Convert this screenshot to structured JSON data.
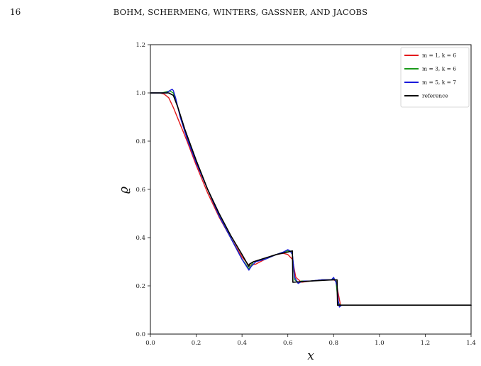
{
  "page": {
    "page_number": "16",
    "running_head": "BOHM, SCHERMENG, WINTERS, GASSNER, AND JACOBS"
  },
  "chart_data": {
    "type": "line",
    "title": "",
    "xlabel": "x",
    "ylabel": "ϱ",
    "xlim": [
      0.0,
      1.4
    ],
    "ylim": [
      0.0,
      1.2
    ],
    "x_ticks": [
      "0.0",
      "0.2",
      "0.4",
      "0.6",
      "0.8",
      "1.0",
      "1.2",
      "1.4"
    ],
    "y_ticks": [
      "0.0",
      "0.2",
      "0.4",
      "0.6",
      "0.8",
      "1.0",
      "1.2"
    ],
    "grid": false,
    "legend_position": "top-right",
    "series": [
      {
        "name": "m = 1, k = 6",
        "color": "#e41a1c",
        "x": [
          0.0,
          0.04,
          0.06,
          0.08,
          0.1,
          0.13,
          0.16,
          0.2,
          0.25,
          0.3,
          0.35,
          0.4,
          0.43,
          0.46,
          0.5,
          0.55,
          0.58,
          0.6,
          0.62,
          0.635,
          0.66,
          0.7,
          0.75,
          0.8,
          0.81,
          0.82,
          0.83,
          0.85,
          1.0,
          1.2,
          1.4
        ],
        "y": [
          1.0,
          1.0,
          0.995,
          0.98,
          0.94,
          0.87,
          0.8,
          0.7,
          0.585,
          0.485,
          0.4,
          0.32,
          0.285,
          0.29,
          0.31,
          0.33,
          0.335,
          0.33,
          0.31,
          0.235,
          0.215,
          0.22,
          0.225,
          0.225,
          0.22,
          0.17,
          0.12,
          0.12,
          0.12,
          0.12,
          0.12
        ]
      },
      {
        "name": "m = 3, k = 6",
        "color": "#1a9a1a",
        "x": [
          0.0,
          0.05,
          0.07,
          0.085,
          0.1,
          0.12,
          0.15,
          0.2,
          0.25,
          0.3,
          0.35,
          0.4,
          0.42,
          0.43,
          0.45,
          0.5,
          0.55,
          0.58,
          0.6,
          0.61,
          0.62,
          0.63,
          0.645,
          0.66,
          0.7,
          0.75,
          0.79,
          0.8,
          0.805,
          0.81,
          0.82,
          0.83,
          0.85,
          1.0,
          1.2,
          1.4
        ],
        "y": [
          1.0,
          1.0,
          1.005,
          1.008,
          1.0,
          0.94,
          0.84,
          0.72,
          0.6,
          0.49,
          0.4,
          0.31,
          0.285,
          0.27,
          0.3,
          0.31,
          0.33,
          0.34,
          0.345,
          0.345,
          0.33,
          0.225,
          0.215,
          0.22,
          0.22,
          0.225,
          0.225,
          0.23,
          0.225,
          0.22,
          0.13,
          0.12,
          0.12,
          0.12,
          0.12,
          0.12
        ]
      },
      {
        "name": "m = 5, k = 7",
        "color": "#1a1adb",
        "x": [
          0.0,
          0.05,
          0.07,
          0.085,
          0.095,
          0.1,
          0.11,
          0.13,
          0.16,
          0.2,
          0.25,
          0.3,
          0.35,
          0.4,
          0.42,
          0.43,
          0.44,
          0.46,
          0.5,
          0.55,
          0.58,
          0.6,
          0.61,
          0.62,
          0.63,
          0.645,
          0.655,
          0.67,
          0.7,
          0.75,
          0.79,
          0.8,
          0.805,
          0.81,
          0.815,
          0.82,
          0.825,
          0.835,
          0.85,
          1.0,
          1.2,
          1.4
        ],
        "y": [
          1.0,
          1.0,
          1.0,
          1.01,
          1.015,
          1.01,
          0.98,
          0.9,
          0.81,
          0.71,
          0.6,
          0.49,
          0.4,
          0.31,
          0.28,
          0.265,
          0.28,
          0.3,
          0.31,
          0.33,
          0.34,
          0.35,
          0.345,
          0.33,
          0.235,
          0.21,
          0.215,
          0.22,
          0.22,
          0.225,
          0.225,
          0.235,
          0.225,
          0.215,
          0.2,
          0.14,
          0.112,
          0.12,
          0.12,
          0.12,
          0.12,
          0.12
        ]
      },
      {
        "name": "reference",
        "color": "#000000",
        "x": [
          0.0,
          0.08,
          0.1,
          0.12,
          0.15,
          0.2,
          0.25,
          0.3,
          0.35,
          0.4,
          0.43,
          0.432,
          0.45,
          0.5,
          0.55,
          0.6,
          0.62,
          0.622,
          0.7,
          0.8,
          0.815,
          0.817,
          0.85,
          1.0,
          1.2,
          1.4
        ],
        "y": [
          1.0,
          1.0,
          0.99,
          0.94,
          0.85,
          0.72,
          0.6,
          0.5,
          0.41,
          0.33,
          0.28,
          0.29,
          0.3,
          0.315,
          0.33,
          0.34,
          0.345,
          0.215,
          0.22,
          0.225,
          0.225,
          0.12,
          0.12,
          0.12,
          0.12,
          0.12
        ]
      }
    ]
  }
}
